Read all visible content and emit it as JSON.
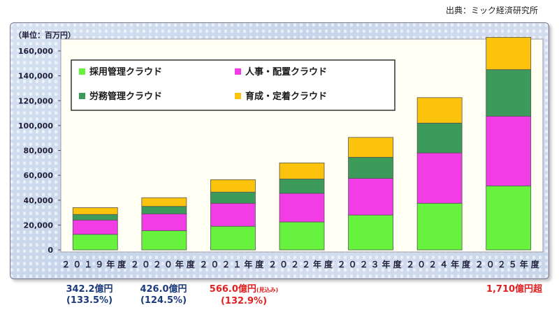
{
  "source": "出典：ミック経済研究所",
  "unit_label": "（単位：百万円）",
  "notes": [
    {
      "amount": "342.2億円",
      "amount_suffix": "",
      "growth": "(133.5%)",
      "color": "#1b3a7a"
    },
    {
      "amount": "426.0億円",
      "amount_suffix": "",
      "growth": "(124.5%)",
      "color": "#1b3a7a"
    },
    {
      "amount": "566.0億円",
      "amount_suffix": "(見込み)",
      "growth": "(132.9%)",
      "color": "#e02020"
    },
    {
      "amount": "1,710億円超",
      "amount_suffix": "",
      "growth": "",
      "color": "#e02020"
    }
  ],
  "chart_data": {
    "type": "bar",
    "stacked": true,
    "categories": [
      "２０１９年度",
      "２０２０年度",
      "２０２１年度",
      "２０２２年度",
      "２０２３年度",
      "２０２４年度",
      "２０２５年度"
    ],
    "series": [
      {
        "name": "採用管理クラウド",
        "color": "#66f23d",
        "values": [
          12500,
          15500,
          19000,
          22500,
          28000,
          37500,
          51500
        ]
      },
      {
        "name": "人事・配置クラウド",
        "color": "#f23ce6",
        "values": [
          11500,
          13500,
          18500,
          23000,
          29500,
          40500,
          56000
        ]
      },
      {
        "name": "労務管理クラウド",
        "color": "#3c9a5a",
        "values": [
          4500,
          6000,
          9000,
          11500,
          17000,
          24000,
          37500
        ]
      },
      {
        "name": "育成・定着クラウド",
        "color": "#fbc30c",
        "values": [
          5500,
          7000,
          10000,
          13000,
          16000,
          20500,
          26000
        ]
      }
    ],
    "y_ticks": [
      "0",
      "20,000",
      "40,000",
      "60,000",
      "80,000",
      "100,000",
      "120,000",
      "140,000",
      "160,000"
    ],
    "ylim": [
      0,
      170000
    ],
    "legend": "inside-top-left"
  }
}
